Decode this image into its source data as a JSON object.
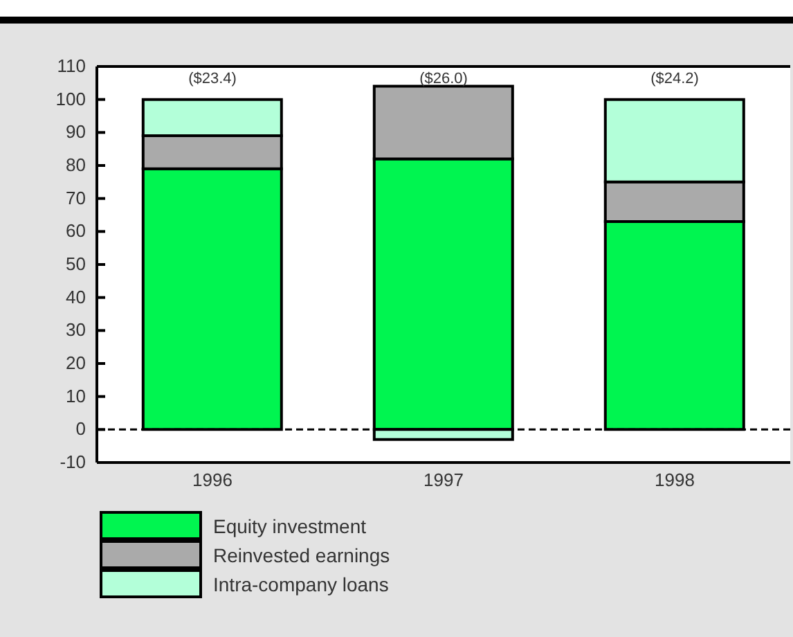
{
  "chart_data": {
    "type": "bar",
    "stacked": true,
    "categories": [
      "1996",
      "1997",
      "1998"
    ],
    "series": [
      {
        "name": "Equity investment",
        "color": "#00f550",
        "values": [
          79,
          82,
          63
        ]
      },
      {
        "name": "Reinvested earnings",
        "color": "#aaaaaa",
        "values": [
          10,
          22,
          12
        ]
      },
      {
        "name": "Intra-company loans",
        "color": "#b3ffd9",
        "values": [
          11,
          -3,
          25
        ]
      }
    ],
    "annotations": [
      "($23.4)",
      "($26.0)",
      "($24.2)"
    ],
    "ylim": [
      -10,
      110
    ],
    "yticks": [
      -10,
      0,
      10,
      20,
      30,
      40,
      50,
      60,
      70,
      80,
      90,
      100,
      110
    ],
    "ref_lines": [
      {
        "axis": "y",
        "value": 0,
        "color": "#000000",
        "line_style": "dashed"
      }
    ],
    "legend": "bottom left"
  }
}
